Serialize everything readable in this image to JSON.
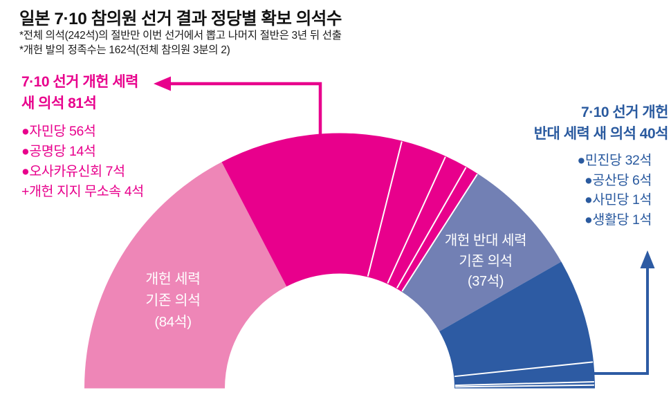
{
  "header": {
    "title": "일본 7·10 참의원 선거 결과 정당별 확보 의석수",
    "notes": [
      "*전체 의석(242석)의 절반만 이번 선거에서 뽑고 나머지 절반은 3년 뒤 선출",
      "*개헌 발의 정족수는 162석(전체 참의원 3분의 2)"
    ]
  },
  "colors": {
    "magenta": "#e8008c",
    "light_pink": "#ee86b7",
    "slate_blue": "#7280b4",
    "dark_blue": "#2d5ba3",
    "blue_text": "#2a5a9f",
    "title_text": "#111111",
    "note_text": "#1a1a1a",
    "divider_white": "#ffffff"
  },
  "callouts": {
    "pro": {
      "heading": [
        "7·10 선거 개헌 세력",
        "새 의석 81석"
      ],
      "items": [
        "●자민당 56석",
        "●공명당 14석",
        "●오사카유신회 7석",
        "+개헌 지지 무소속 4석"
      ]
    },
    "anti": {
      "heading": [
        "7·10 선거 개헌",
        "반대 세력 새 의석 40석"
      ],
      "items": [
        "●민진당 32석",
        "●공산당 6석",
        "●사민당 1석",
        "●생활당 1석"
      ]
    }
  },
  "segment_labels": {
    "existing_pro": [
      "개헌 세력",
      "기존 의석",
      "(84석)"
    ],
    "existing_anti": [
      "개헌 반대 세력",
      "기존 의석",
      "(37석)"
    ]
  },
  "chart_data": {
    "type": "semicircle-donut",
    "title": "일본 7·10 참의원 선거 결과 정당별 확보 의석수",
    "total_seats": 242,
    "revision_quorum_seats": 162,
    "groups": [
      {
        "label": "개헌 세력 기존 의석",
        "seats": 84,
        "color_key": "light_pink",
        "trailing_divider": false,
        "segments": [
          {
            "key": "existing-pro-revision",
            "party": "개헌 세력 기존 의석",
            "seats": 84
          }
        ]
      },
      {
        "label": "개헌 세력 새 의석",
        "seats": 81,
        "color_key": "magenta",
        "trailing_divider": true,
        "segments": [
          {
            "key": "ldp",
            "party": "자민당",
            "seats": 56
          },
          {
            "key": "komeito",
            "party": "공명당",
            "seats": 14
          },
          {
            "key": "osaka-ishin",
            "party": "오사카유신회",
            "seats": 7
          },
          {
            "key": "pro-revision-independents",
            "party": "개헌 지지 무소속",
            "seats": 4
          }
        ]
      },
      {
        "label": "개헌 반대 세력 기존 의석",
        "seats": 37,
        "color_key": "slate_blue",
        "trailing_divider": false,
        "segments": [
          {
            "key": "existing-anti-revision",
            "party": "개헌 반대 세력 기존 의석",
            "seats": 37
          }
        ]
      },
      {
        "label": "개헌 반대 세력 새 의석",
        "seats": 40,
        "color_key": "dark_blue",
        "trailing_divider": false,
        "segments": [
          {
            "key": "minshin",
            "party": "민진당",
            "seats": 32
          },
          {
            "key": "jcp",
            "party": "공산당",
            "seats": 6
          },
          {
            "key": "sdp",
            "party": "사민당",
            "seats": 1
          },
          {
            "key": "seikatsu",
            "party": "생활당",
            "seats": 1
          }
        ]
      }
    ]
  }
}
